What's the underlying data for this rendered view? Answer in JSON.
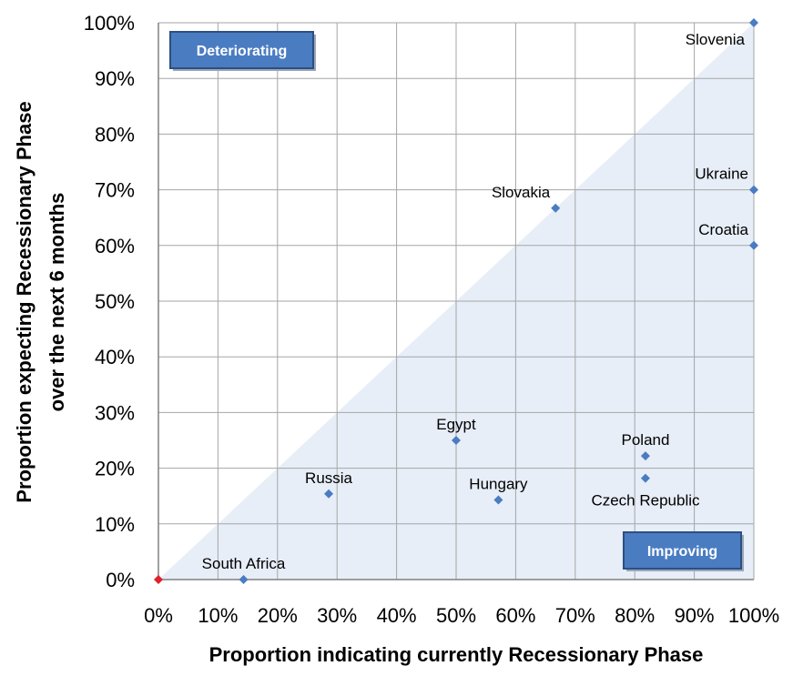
{
  "chart_data": {
    "type": "scatter",
    "xlabel": "Proportion indicating currently Recessionary Phase",
    "ylabel_line1": "Proportion expecting Recessionary Phase",
    "ylabel_line2": "over the next 6 months",
    "xlim": [
      0,
      1
    ],
    "ylim": [
      0,
      1
    ],
    "x_ticks": [
      0,
      0.1,
      0.2,
      0.3,
      0.4,
      0.5,
      0.6,
      0.7,
      0.8,
      0.9,
      1.0
    ],
    "x_tick_labels": [
      "0%",
      "10%",
      "20%",
      "30%",
      "40%",
      "50%",
      "60%",
      "70%",
      "80%",
      "90%",
      "100%"
    ],
    "y_ticks": [
      0,
      0.1,
      0.2,
      0.3,
      0.4,
      0.5,
      0.6,
      0.7,
      0.8,
      0.9,
      1.0
    ],
    "y_tick_labels": [
      "0%",
      "10%",
      "20%",
      "30%",
      "40%",
      "50%",
      "60%",
      "70%",
      "80%",
      "90%",
      "100%"
    ],
    "grid": true,
    "diagonal_shading": "below-diagonal",
    "regions": [
      {
        "label": "Deteriorating",
        "position": "top-left"
      },
      {
        "label": "Improving",
        "position": "bottom-right"
      }
    ],
    "points": [
      {
        "label": "",
        "x": 0.0,
        "y": 0.0,
        "color": "#e0212b"
      },
      {
        "label": "South Africa",
        "x": 0.143,
        "y": 0.0,
        "color": "#4a7cc2",
        "label_pos": "above"
      },
      {
        "label": "Russia",
        "x": 0.286,
        "y": 0.154,
        "color": "#4a7cc2",
        "label_pos": "above"
      },
      {
        "label": "Egypt",
        "x": 0.5,
        "y": 0.25,
        "color": "#4a7cc2",
        "label_pos": "above"
      },
      {
        "label": "Hungary",
        "x": 0.571,
        "y": 0.143,
        "color": "#4a7cc2",
        "label_pos": "above"
      },
      {
        "label": "Slovakia",
        "x": 0.667,
        "y": 0.667,
        "color": "#4a7cc2",
        "label_pos": "above-left"
      },
      {
        "label": "Poland",
        "x": 0.818,
        "y": 0.222,
        "color": "#4a7cc2",
        "label_pos": "above"
      },
      {
        "label": "Czech Republic",
        "x": 0.818,
        "y": 0.182,
        "color": "#4a7cc2",
        "label_pos": "below"
      },
      {
        "label": "Croatia",
        "x": 1.0,
        "y": 0.6,
        "color": "#4a7cc2",
        "label_pos": "above-left"
      },
      {
        "label": "Ukraine",
        "x": 1.0,
        "y": 0.7,
        "color": "#4a7cc2",
        "label_pos": "above-left"
      },
      {
        "label": "Slovenia",
        "x": 1.0,
        "y": 1.0,
        "color": "#4a7cc2",
        "label_pos": "below-left"
      }
    ],
    "colors": {
      "shading": "#e7eef8",
      "grid": "#a6a6a6",
      "box_fill": "#4a7cc2",
      "box_border": "#2d4f80"
    }
  }
}
